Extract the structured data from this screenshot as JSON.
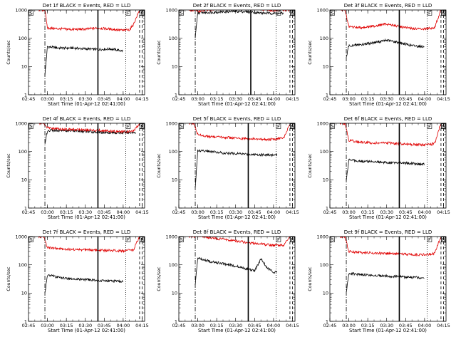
{
  "figure": {
    "xlabel": "Start Time (01-Apr-12 02:41:00)",
    "ylabel": "Counts/sec",
    "x_tick_labels": [
      "02:45",
      "03:00",
      "03:15",
      "03:30",
      "03:45",
      "04:00",
      "04:15"
    ],
    "y_tick_labels": [
      "1",
      "10",
      "100",
      "1000"
    ],
    "flag_labels": [
      "S",
      "F",
      "E",
      "S"
    ],
    "colors": {
      "events": "#000000",
      "lld": "#e00000"
    }
  },
  "chart_data": [
    {
      "type": "line",
      "title": "Det 1f BLACK = Events, RED = LLD",
      "xlabel": "Start Time (01-Apr-12 02:41:00)",
      "ylabel": "Counts/sec",
      "yscale": "log",
      "ylim": [
        1,
        1000
      ],
      "xlim": [
        "02:45",
        "04:17"
      ],
      "series": [
        {
          "name": "Events",
          "color": "#000000",
          "x": [
            "02:58",
            "03:00",
            "03:10",
            "03:20",
            "03:30",
            "03:40",
            "03:50",
            "04:00"
          ],
          "values": [
            5,
            50,
            45,
            45,
            42,
            40,
            42,
            35
          ]
        },
        {
          "name": "LLD",
          "color": "#e00000",
          "x": [
            "02:53",
            "02:58",
            "03:00",
            "03:10",
            "03:20",
            "03:30",
            "03:40",
            "03:50",
            "04:00",
            "04:05",
            "04:08",
            "04:13"
          ],
          "values": [
            1000,
            1000,
            230,
            215,
            205,
            210,
            230,
            210,
            190,
            200,
            300,
            1000
          ]
        }
      ],
      "vlines": {
        "dash_dot": "02:58",
        "solid": "03:40",
        "dotted": "04:02",
        "dashed": [
          "04:13",
          "04:15"
        ]
      }
    },
    {
      "type": "line",
      "title": "Det 2f BLACK = Events, RED = LLD",
      "xlabel": "Start Time (01-Apr-12 02:41:00)",
      "ylabel": "Counts/sec",
      "yscale": "log",
      "ylim": [
        1,
        1000
      ],
      "xlim": [
        "02:45",
        "04:17"
      ],
      "series": [
        {
          "name": "Events",
          "color": "#000000",
          "x": [
            "02:58",
            "03:00",
            "03:10",
            "03:20",
            "03:30",
            "03:40",
            "03:50",
            "04:00",
            "04:08"
          ],
          "values": [
            100,
            800,
            820,
            860,
            900,
            860,
            780,
            760,
            760
          ]
        },
        {
          "name": "LLD",
          "color": "#e00000",
          "x": [
            "02:53",
            "02:57",
            "03:00",
            "03:10",
            "03:20",
            "03:30",
            "03:40",
            "03:50",
            "04:00",
            "04:08",
            "04:13"
          ],
          "values": [
            1000,
            1000,
            900,
            1000,
            1200,
            1400,
            1300,
            1050,
            950,
            1000,
            1000
          ]
        }
      ],
      "vlines": {
        "dash_dot": "02:58",
        "solid": "03:42",
        "dotted": "04:02",
        "dashed": [
          "04:13",
          "04:15"
        ]
      }
    },
    {
      "type": "line",
      "title": "Det 3f BLACK = Events, RED = LLD",
      "xlabel": "Start Time (01-Apr-12 02:41:00)",
      "ylabel": "Counts/sec",
      "yscale": "log",
      "ylim": [
        1,
        1000
      ],
      "xlim": [
        "02:45",
        "04:17"
      ],
      "series": [
        {
          "name": "Events",
          "color": "#000000",
          "x": [
            "02:58",
            "03:00",
            "03:10",
            "03:20",
            "03:30",
            "03:40",
            "03:50",
            "04:00"
          ],
          "values": [
            20,
            55,
            60,
            70,
            85,
            70,
            55,
            50
          ]
        },
        {
          "name": "LLD",
          "color": "#e00000",
          "x": [
            "02:53",
            "02:57",
            "03:00",
            "03:10",
            "03:20",
            "03:30",
            "03:40",
            "03:50",
            "04:00",
            "04:08",
            "04:13"
          ],
          "values": [
            1000,
            1000,
            250,
            240,
            270,
            320,
            260,
            220,
            210,
            240,
            1000
          ]
        }
      ],
      "vlines": {
        "dash_dot": "02:58",
        "solid": "03:40",
        "dotted": "04:02",
        "dashed": [
          "04:13",
          "04:15"
        ]
      }
    },
    {
      "type": "line",
      "title": "Det 4f BLACK = Events, RED = LLD",
      "xlabel": "Start Time (01-Apr-12 02:41:00)",
      "ylabel": "Counts/sec",
      "yscale": "log",
      "ylim": [
        1,
        1000
      ],
      "xlim": [
        "02:45",
        "04:17"
      ],
      "series": [
        {
          "name": "Events",
          "color": "#000000",
          "x": [
            "02:58",
            "03:00",
            "03:10",
            "03:20",
            "03:30",
            "03:40",
            "03:50",
            "04:00",
            "04:10"
          ],
          "values": [
            200,
            550,
            560,
            540,
            510,
            480,
            470,
            460,
            480
          ]
        },
        {
          "name": "LLD",
          "color": "#e00000",
          "x": [
            "02:53",
            "02:57",
            "03:00",
            "03:10",
            "03:20",
            "03:30",
            "03:40",
            "03:50",
            "04:00",
            "04:08",
            "04:13"
          ],
          "values": [
            1000,
            1000,
            700,
            620,
            600,
            580,
            560,
            520,
            500,
            520,
            1000
          ]
        }
      ],
      "vlines": {
        "dash_dot": "02:58",
        "solid": "03:40",
        "dotted": "04:02",
        "dashed": [
          "04:13",
          "04:15"
        ]
      }
    },
    {
      "type": "line",
      "title": "Det 5f BLACK = Events, RED = LLD",
      "xlabel": "Start Time (01-Apr-12 02:41:00)",
      "ylabel": "Counts/sec",
      "yscale": "log",
      "ylim": [
        1,
        1000
      ],
      "xlim": [
        "02:45",
        "04:17"
      ],
      "series": [
        {
          "name": "Events",
          "color": "#000000",
          "x": [
            "02:58",
            "03:00",
            "03:10",
            "03:20",
            "03:30",
            "03:40",
            "03:50",
            "04:00",
            "04:03"
          ],
          "values": [
            5,
            110,
            100,
            90,
            85,
            80,
            78,
            75,
            75
          ]
        },
        {
          "name": "LLD",
          "color": "#e00000",
          "x": [
            "02:53",
            "02:57",
            "03:00",
            "03:10",
            "03:20",
            "03:30",
            "03:40",
            "03:50",
            "04:00",
            "04:08",
            "04:13"
          ],
          "values": [
            1000,
            1000,
            400,
            330,
            320,
            300,
            280,
            270,
            270,
            300,
            1000
          ]
        }
      ],
      "vlines": {
        "dash_dot": "02:58",
        "solid": "03:40",
        "dotted": "04:02",
        "dashed": [
          "04:13",
          "04:15"
        ]
      }
    },
    {
      "type": "line",
      "title": "Det 6f BLACK = Events, RED = LLD",
      "xlabel": "Start Time (01-Apr-12 02:41:00)",
      "ylabel": "Counts/sec",
      "yscale": "log",
      "ylim": [
        1,
        1000
      ],
      "xlim": [
        "02:45",
        "04:17"
      ],
      "series": [
        {
          "name": "Events",
          "color": "#000000",
          "x": [
            "02:58",
            "03:00",
            "03:10",
            "03:20",
            "03:30",
            "03:40",
            "03:50",
            "04:00"
          ],
          "values": [
            10,
            50,
            45,
            45,
            40,
            40,
            38,
            35
          ]
        },
        {
          "name": "LLD",
          "color": "#e00000",
          "x": [
            "02:53",
            "02:57",
            "03:00",
            "03:10",
            "03:20",
            "03:30",
            "03:40",
            "03:50",
            "04:00",
            "04:08",
            "04:13"
          ],
          "values": [
            1000,
            1000,
            250,
            210,
            200,
            200,
            190,
            180,
            170,
            190,
            1000
          ]
        }
      ],
      "vlines": {
        "dash_dot": "02:58",
        "solid": "03:40",
        "dotted": "04:02",
        "dashed": [
          "04:13",
          "04:15"
        ]
      }
    },
    {
      "type": "line",
      "title": "Det 7f BLACK = Events, RED = LLD",
      "xlabel": "Start Time (01-Apr-12 02:41:00)",
      "ylabel": "Counts/sec",
      "yscale": "log",
      "ylim": [
        1,
        1000
      ],
      "xlim": [
        "02:45",
        "04:17"
      ],
      "series": [
        {
          "name": "Events",
          "color": "#000000",
          "x": [
            "02:58",
            "03:00",
            "03:10",
            "03:20",
            "03:30",
            "03:40",
            "03:50",
            "04:00"
          ],
          "values": [
            10,
            45,
            35,
            32,
            30,
            28,
            27,
            25
          ]
        },
        {
          "name": "LLD",
          "color": "#e00000",
          "x": [
            "02:53",
            "02:57",
            "03:00",
            "03:10",
            "03:20",
            "03:30",
            "03:40",
            "03:50",
            "04:00",
            "04:08",
            "04:13"
          ],
          "values": [
            1000,
            1000,
            400,
            370,
            350,
            340,
            330,
            320,
            310,
            330,
            1000
          ]
        }
      ],
      "vlines": {
        "dash_dot": "02:58",
        "solid": "03:40",
        "dotted": "04:02",
        "dashed": [
          "04:13",
          "04:15"
        ]
      }
    },
    {
      "type": "line",
      "title": "Det 8f BLACK = Events, RED = LLD",
      "xlabel": "Start Time (01-Apr-12 02:41:00)",
      "ylabel": "Counts/sec",
      "yscale": "log",
      "ylim": [
        1,
        1000
      ],
      "xlim": [
        "02:45",
        "04:17"
      ],
      "series": [
        {
          "name": "Events",
          "color": "#000000",
          "x": [
            "02:58",
            "03:00",
            "03:10",
            "03:20",
            "03:30",
            "03:40",
            "03:45",
            "03:50",
            "03:55",
            "04:00",
            "04:03"
          ],
          "values": [
            20,
            180,
            130,
            110,
            90,
            70,
            60,
            160,
            80,
            55,
            55
          ]
        },
        {
          "name": "LLD",
          "color": "#e00000",
          "x": [
            "02:53",
            "02:57",
            "03:00",
            "03:10",
            "03:20",
            "03:30",
            "03:40",
            "03:50",
            "04:00",
            "04:08",
            "04:13"
          ],
          "values": [
            1000,
            1000,
            1100,
            900,
            800,
            700,
            600,
            550,
            480,
            500,
            1000
          ]
        }
      ],
      "vlines": {
        "dash_dot": "02:58",
        "solid": "03:40",
        "dotted": "04:02",
        "dashed": [
          "04:13",
          "04:15"
        ]
      }
    },
    {
      "type": "line",
      "title": "Det 9f BLACK = Events, RED = LLD",
      "xlabel": "Start Time (01-Apr-12 02:41:00)",
      "ylabel": "Counts/sec",
      "yscale": "log",
      "ylim": [
        1,
        1000
      ],
      "xlim": [
        "02:45",
        "04:17"
      ],
      "series": [
        {
          "name": "Events",
          "color": "#000000",
          "x": [
            "02:58",
            "03:00",
            "03:10",
            "03:20",
            "03:30",
            "03:40",
            "03:50",
            "04:00"
          ],
          "values": [
            10,
            50,
            45,
            42,
            40,
            38,
            36,
            35
          ]
        },
        {
          "name": "LLD",
          "color": "#e00000",
          "x": [
            "02:53",
            "02:57",
            "03:00",
            "03:10",
            "03:20",
            "03:30",
            "03:40",
            "03:50",
            "04:00",
            "04:08",
            "04:13"
          ],
          "values": [
            1000,
            1000,
            300,
            270,
            260,
            250,
            240,
            230,
            230,
            250,
            1000
          ]
        }
      ],
      "vlines": {
        "dash_dot": "02:58",
        "solid": "03:40",
        "dotted": "04:02",
        "dashed": [
          "04:13",
          "04:15"
        ]
      }
    }
  ]
}
